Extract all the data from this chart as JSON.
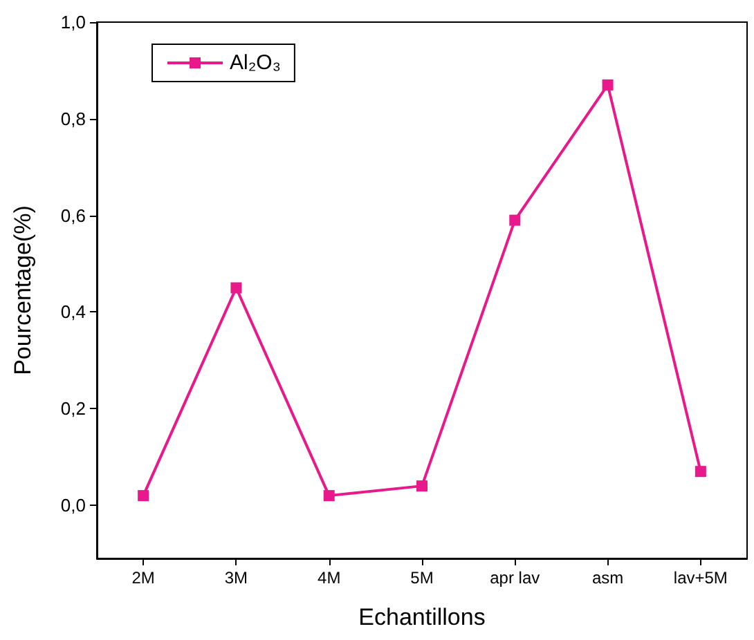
{
  "chart_data": {
    "type": "line",
    "xlabel": "Echantillons",
    "ylabel": "Pourcentage(%)",
    "categories": [
      "2M",
      "3M",
      "4M",
      "5M",
      "apr lav",
      "asm",
      "lav+5M"
    ],
    "series": [
      {
        "name": "Al₂O₃",
        "color": "#e8198b",
        "values": [
          0.02,
          0.45,
          0.02,
          0.04,
          0.59,
          0.87,
          0.07
        ]
      }
    ],
    "ylim": [
      -0.11,
      1.0
    ],
    "yticks": [
      {
        "value": 0,
        "label": "0,0"
      },
      {
        "value": 0.2,
        "label": "0,2"
      },
      {
        "value": 0.4,
        "label": "0,4"
      },
      {
        "value": 0.6,
        "label": "0,6"
      },
      {
        "value": 0.8,
        "label": "0,8"
      },
      {
        "value": 1.0,
        "label": "1,0"
      }
    ],
    "grid": false,
    "legend": "top left",
    "marker": "square",
    "line_style": "solid"
  }
}
